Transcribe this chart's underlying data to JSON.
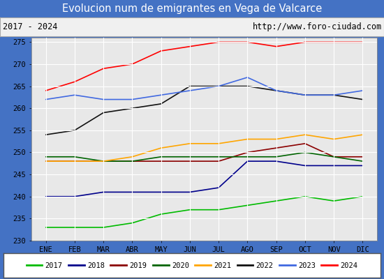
{
  "title": "Evolucion num de emigrantes en Vega de Valcarce",
  "subtitle_left": "2017 - 2024",
  "subtitle_right": "http://www.foro-ciudad.com",
  "ylim": [
    230,
    276
  ],
  "yticks": [
    230,
    235,
    240,
    245,
    250,
    255,
    260,
    265,
    270,
    275
  ],
  "months": [
    "ENE",
    "FEB",
    "MAR",
    "ABR",
    "MAY",
    "JUN",
    "JUL",
    "AGO",
    "SEP",
    "OCT",
    "NOV",
    "DIC"
  ],
  "title_bg_color": "#4472c4",
  "title_text_color": "#ffffff",
  "subtitle_bg_color": "#f0f0f0",
  "plot_bg_color": "#e8e8e8",
  "grid_color": "#ffffff",
  "legend_bg_color": "#ffffff",
  "series": [
    {
      "label": "2017",
      "color": "#00bb00",
      "values": [
        233,
        233,
        233,
        234,
        236,
        237,
        237,
        238,
        239,
        240,
        239,
        240
      ]
    },
    {
      "label": "2018",
      "color": "#00008b",
      "values": [
        240,
        240,
        241,
        241,
        241,
        241,
        242,
        248,
        248,
        247,
        247,
        247
      ]
    },
    {
      "label": "2019",
      "color": "#8b0000",
      "values": [
        248,
        248,
        248,
        248,
        248,
        248,
        248,
        250,
        251,
        252,
        249,
        249
      ]
    },
    {
      "label": "2020",
      "color": "#006400",
      "values": [
        249,
        249,
        248,
        248,
        249,
        249,
        249,
        249,
        249,
        250,
        249,
        248
      ]
    },
    {
      "label": "2021",
      "color": "#ffa500",
      "values": [
        248,
        248,
        248,
        249,
        251,
        252,
        252,
        253,
        253,
        254,
        253,
        254
      ]
    },
    {
      "label": "2022",
      "color": "#111111",
      "values": [
        254,
        255,
        259,
        260,
        261,
        265,
        265,
        265,
        264,
        263,
        263,
        262
      ]
    },
    {
      "label": "2023",
      "color": "#4169e1",
      "values": [
        262,
        263,
        262,
        262,
        263,
        264,
        265,
        267,
        264,
        263,
        263,
        264
      ]
    },
    {
      "label": "2024",
      "color": "#ff0000",
      "values": [
        264,
        266,
        269,
        270,
        273,
        274,
        275,
        275,
        274,
        275,
        275,
        275
      ]
    }
  ]
}
